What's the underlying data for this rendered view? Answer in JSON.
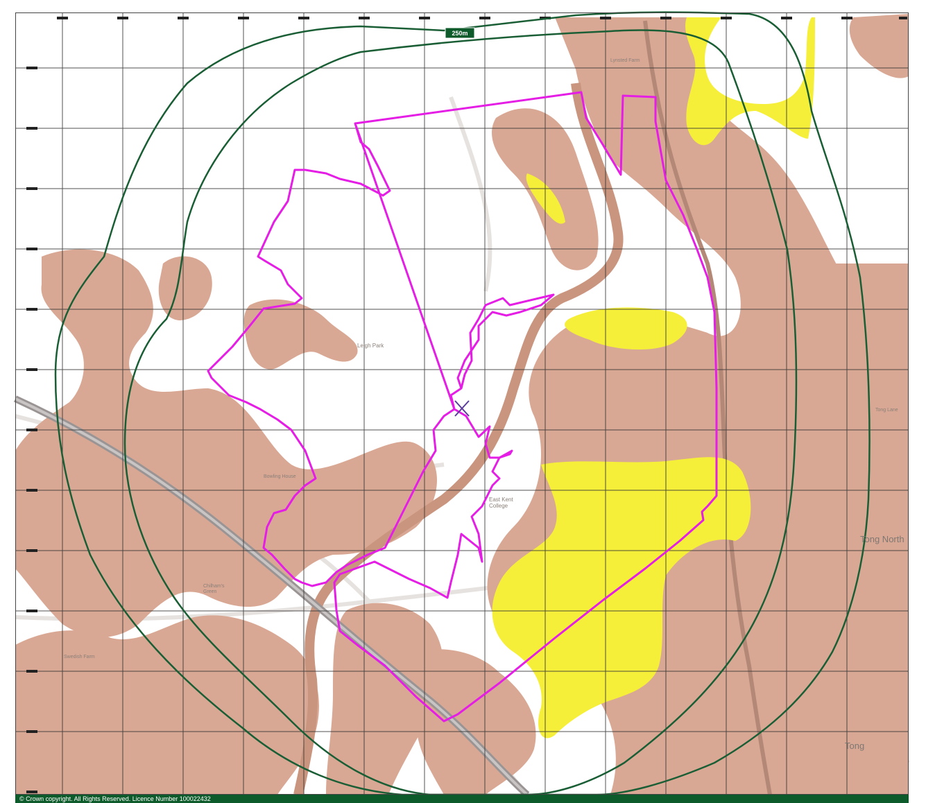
{
  "map": {
    "buffer_label": "250m",
    "copyright": "© Crown copyright. All Rights Reserved. Licence Number 100022432",
    "place_labels": {
      "leigh_park": "Leigh Park",
      "east_kent_college": "East Kent College",
      "tong_north": "Tong North",
      "tong": "Tong",
      "bowling_house": "Bowling House",
      "chilhams_green": "Chilham's Green",
      "lynsted_farm": "Lynsted Farm",
      "swedish_farm": "Swedish Farm",
      "tong_lane": "Tong Lane"
    },
    "colors": {
      "background": "#ffffff",
      "clay_geology": "#d9a894",
      "sand_geology": "#f5ef3a",
      "site_boundary": "#e51ee5",
      "buffer_lines": "#1a5e35",
      "grid": "#333333",
      "footer": "#0d5b2a"
    },
    "marker_icon": "cross-marker-icon"
  }
}
